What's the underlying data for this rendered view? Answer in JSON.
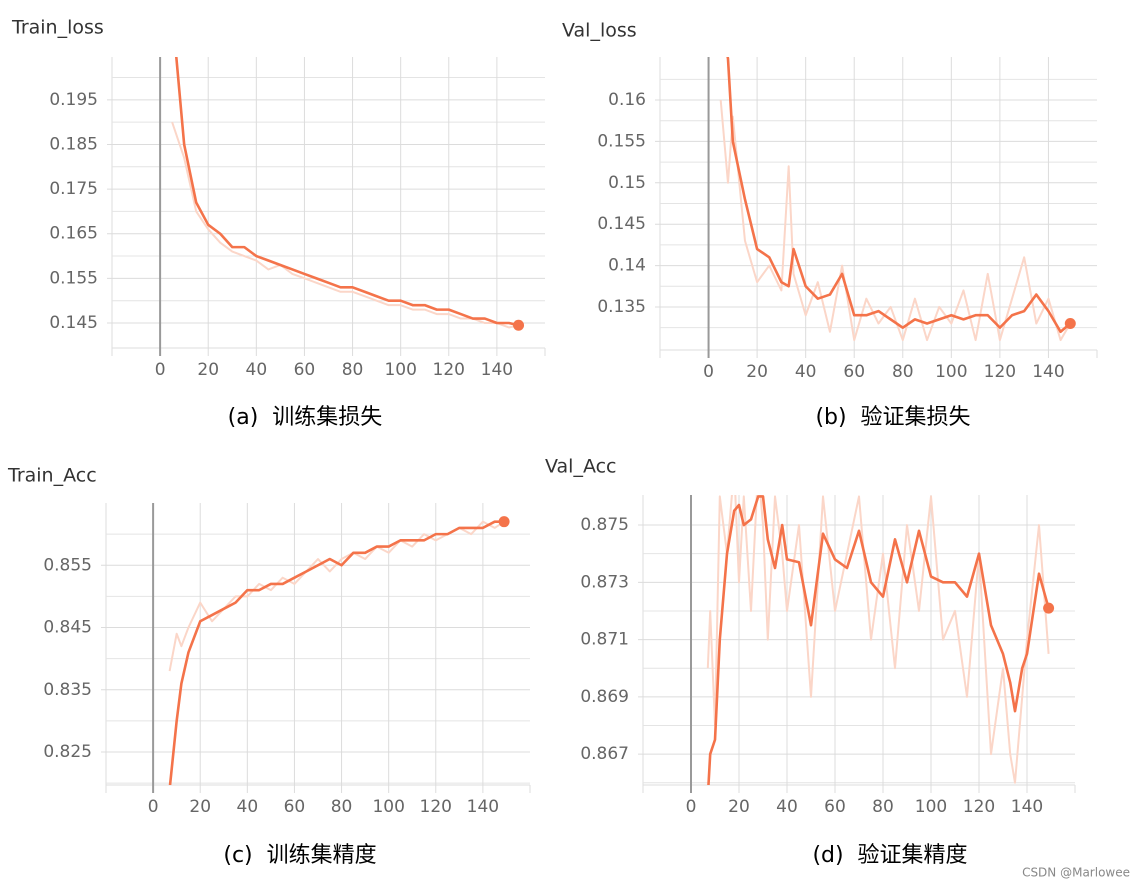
{
  "chart_data": [
    {
      "type": "line",
      "title": "Train_loss",
      "caption": "(a)  训练集损失",
      "x": [
        5,
        10,
        15,
        20,
        25,
        30,
        35,
        40,
        45,
        50,
        55,
        60,
        65,
        70,
        75,
        80,
        85,
        90,
        95,
        100,
        105,
        110,
        115,
        120,
        125,
        130,
        135,
        140,
        145,
        149
      ],
      "series": [
        {
          "color": "#fbd6c8",
          "values": [
            0.19,
            0.182,
            0.17,
            0.166,
            0.163,
            0.161,
            0.16,
            0.159,
            0.157,
            0.158,
            0.156,
            0.155,
            0.154,
            0.153,
            0.152,
            0.152,
            0.151,
            0.15,
            0.149,
            0.149,
            0.148,
            0.148,
            0.147,
            0.147,
            0.146,
            0.146,
            0.145,
            0.145,
            0.144,
            0.1445
          ]
        },
        {
          "color": "#f4734a",
          "values": [
            0.215,
            0.185,
            0.172,
            0.167,
            0.165,
            0.162,
            0.162,
            0.16,
            0.159,
            0.158,
            0.157,
            0.156,
            0.155,
            0.154,
            0.153,
            0.153,
            0.152,
            0.151,
            0.15,
            0.15,
            0.149,
            0.149,
            0.148,
            0.148,
            0.147,
            0.146,
            0.146,
            0.145,
            0.145,
            0.1445
          ]
        }
      ],
      "xlim": [
        -20,
        160
      ],
      "xticks": [
        0,
        20,
        40,
        60,
        80,
        100,
        120,
        140
      ],
      "ylim": [
        0.1394,
        0.2046
      ],
      "yticks": [
        0.145,
        0.155,
        0.165,
        0.175,
        0.185,
        0.195
      ],
      "yminor": [
        0.15,
        0.16,
        0.17,
        0.18,
        0.19,
        0.2
      ],
      "grid": true
    },
    {
      "type": "line",
      "title": "Val_loss",
      "caption": "(b)  验证集损失",
      "x": [
        5,
        8,
        10,
        15,
        20,
        25,
        30,
        33,
        35,
        40,
        45,
        50,
        55,
        60,
        65,
        70,
        75,
        80,
        85,
        90,
        95,
        100,
        105,
        110,
        115,
        120,
        125,
        130,
        135,
        140,
        145,
        149
      ],
      "series": [
        {
          "color": "#fbd6c8",
          "values": [
            0.16,
            0.15,
            0.158,
            0.143,
            0.138,
            0.14,
            0.137,
            0.152,
            0.139,
            0.134,
            0.138,
            0.132,
            0.14,
            0.131,
            0.136,
            0.133,
            0.135,
            0.131,
            0.136,
            0.131,
            0.135,
            0.133,
            0.137,
            0.131,
            0.139,
            0.131,
            0.136,
            0.141,
            0.133,
            0.136,
            0.131,
            0.133
          ]
        },
        {
          "color": "#f4734a",
          "values": [
            0.17,
            0.165,
            0.155,
            0.148,
            0.142,
            0.141,
            0.138,
            0.1375,
            0.142,
            0.1375,
            0.136,
            0.1365,
            0.139,
            0.134,
            0.134,
            0.1345,
            0.1335,
            0.1325,
            0.1335,
            0.133,
            0.1335,
            0.134,
            0.1335,
            0.134,
            0.134,
            0.1325,
            0.134,
            0.1345,
            0.1365,
            0.1345,
            0.132,
            0.133
          ]
        }
      ],
      "xlim": [
        -20,
        160
      ],
      "xticks": [
        0,
        20,
        40,
        60,
        80,
        100,
        120,
        140
      ],
      "ylim": [
        0.1298,
        0.1652
      ],
      "yticks": [
        0.135,
        0.14,
        0.145,
        0.15,
        0.155,
        0.16
      ],
      "yminor": [
        0.1325,
        0.1375,
        0.1425,
        0.1475,
        0.1525,
        0.1575,
        0.1625
      ],
      "grid": true
    },
    {
      "type": "line",
      "title": "Train_Acc",
      "caption": "(c)  训练集精度",
      "x": [
        7,
        10,
        12,
        15,
        20,
        25,
        30,
        35,
        40,
        45,
        50,
        55,
        60,
        65,
        70,
        75,
        80,
        85,
        90,
        95,
        100,
        105,
        110,
        115,
        120,
        125,
        130,
        135,
        140,
        145,
        149
      ],
      "series": [
        {
          "color": "#fbd6c8",
          "values": [
            0.838,
            0.844,
            0.842,
            0.845,
            0.849,
            0.846,
            0.848,
            0.85,
            0.85,
            0.852,
            0.851,
            0.853,
            0.852,
            0.854,
            0.856,
            0.854,
            0.856,
            0.857,
            0.856,
            0.858,
            0.857,
            0.859,
            0.858,
            0.86,
            0.859,
            0.86,
            0.861,
            0.86,
            0.862,
            0.861,
            0.862
          ]
        },
        {
          "color": "#f4734a",
          "values": [
            0.819,
            0.83,
            0.836,
            0.841,
            0.846,
            0.847,
            0.848,
            0.849,
            0.851,
            0.851,
            0.852,
            0.852,
            0.853,
            0.854,
            0.855,
            0.856,
            0.855,
            0.857,
            0.857,
            0.858,
            0.858,
            0.859,
            0.859,
            0.859,
            0.86,
            0.86,
            0.861,
            0.861,
            0.861,
            0.862,
            0.862
          ]
        }
      ],
      "xlim": [
        -20,
        160
      ],
      "xticks": [
        0,
        20,
        40,
        60,
        80,
        100,
        120,
        140
      ],
      "ylim": [
        0.8197,
        0.865
      ],
      "yticks": [
        0.825,
        0.835,
        0.845,
        0.855
      ],
      "yminor": [
        0.82,
        0.83,
        0.84,
        0.85,
        0.86
      ],
      "grid": true
    },
    {
      "type": "line",
      "title": "Val_Acc",
      "caption": "(d)  验证集精度",
      "x": [
        7,
        8,
        10,
        12,
        15,
        18,
        20,
        22,
        25,
        28,
        30,
        32,
        35,
        38,
        40,
        45,
        50,
        55,
        60,
        65,
        70,
        75,
        80,
        85,
        90,
        95,
        100,
        105,
        110,
        115,
        120,
        125,
        130,
        133,
        135,
        138,
        140,
        145,
        149
      ],
      "series": [
        {
          "color": "#fbd6c8",
          "values": [
            0.87,
            0.872,
            0.868,
            0.876,
            0.874,
            0.877,
            0.873,
            0.876,
            0.872,
            0.877,
            0.875,
            0.871,
            0.876,
            0.874,
            0.872,
            0.875,
            0.869,
            0.876,
            0.872,
            0.874,
            0.876,
            0.871,
            0.874,
            0.87,
            0.875,
            0.872,
            0.876,
            0.871,
            0.872,
            0.869,
            0.874,
            0.867,
            0.87,
            0.867,
            0.866,
            0.869,
            0.871,
            0.875,
            0.8705
          ]
        },
        {
          "color": "#f4734a",
          "values": [
            0.8655,
            0.867,
            0.8675,
            0.871,
            0.874,
            0.8755,
            0.8757,
            0.875,
            0.8752,
            0.876,
            0.876,
            0.8745,
            0.8735,
            0.875,
            0.8738,
            0.8737,
            0.8715,
            0.8747,
            0.8738,
            0.8735,
            0.8748,
            0.873,
            0.8725,
            0.8745,
            0.873,
            0.8748,
            0.8732,
            0.873,
            0.873,
            0.8725,
            0.874,
            0.8715,
            0.8705,
            0.8695,
            0.8685,
            0.87,
            0.8705,
            0.8733,
            0.8721
          ]
        }
      ],
      "xlim": [
        -20,
        160
      ],
      "xticks": [
        0,
        20,
        40,
        60,
        80,
        100,
        120,
        140
      ],
      "ylim": [
        0.86592,
        0.87605
      ],
      "yticks": [
        0.867,
        0.869,
        0.871,
        0.873,
        0.875
      ],
      "yminor": [
        0.866,
        0.868,
        0.87,
        0.872,
        0.874
      ],
      "grid": true
    }
  ],
  "watermark": "CSDN @Marlowee"
}
